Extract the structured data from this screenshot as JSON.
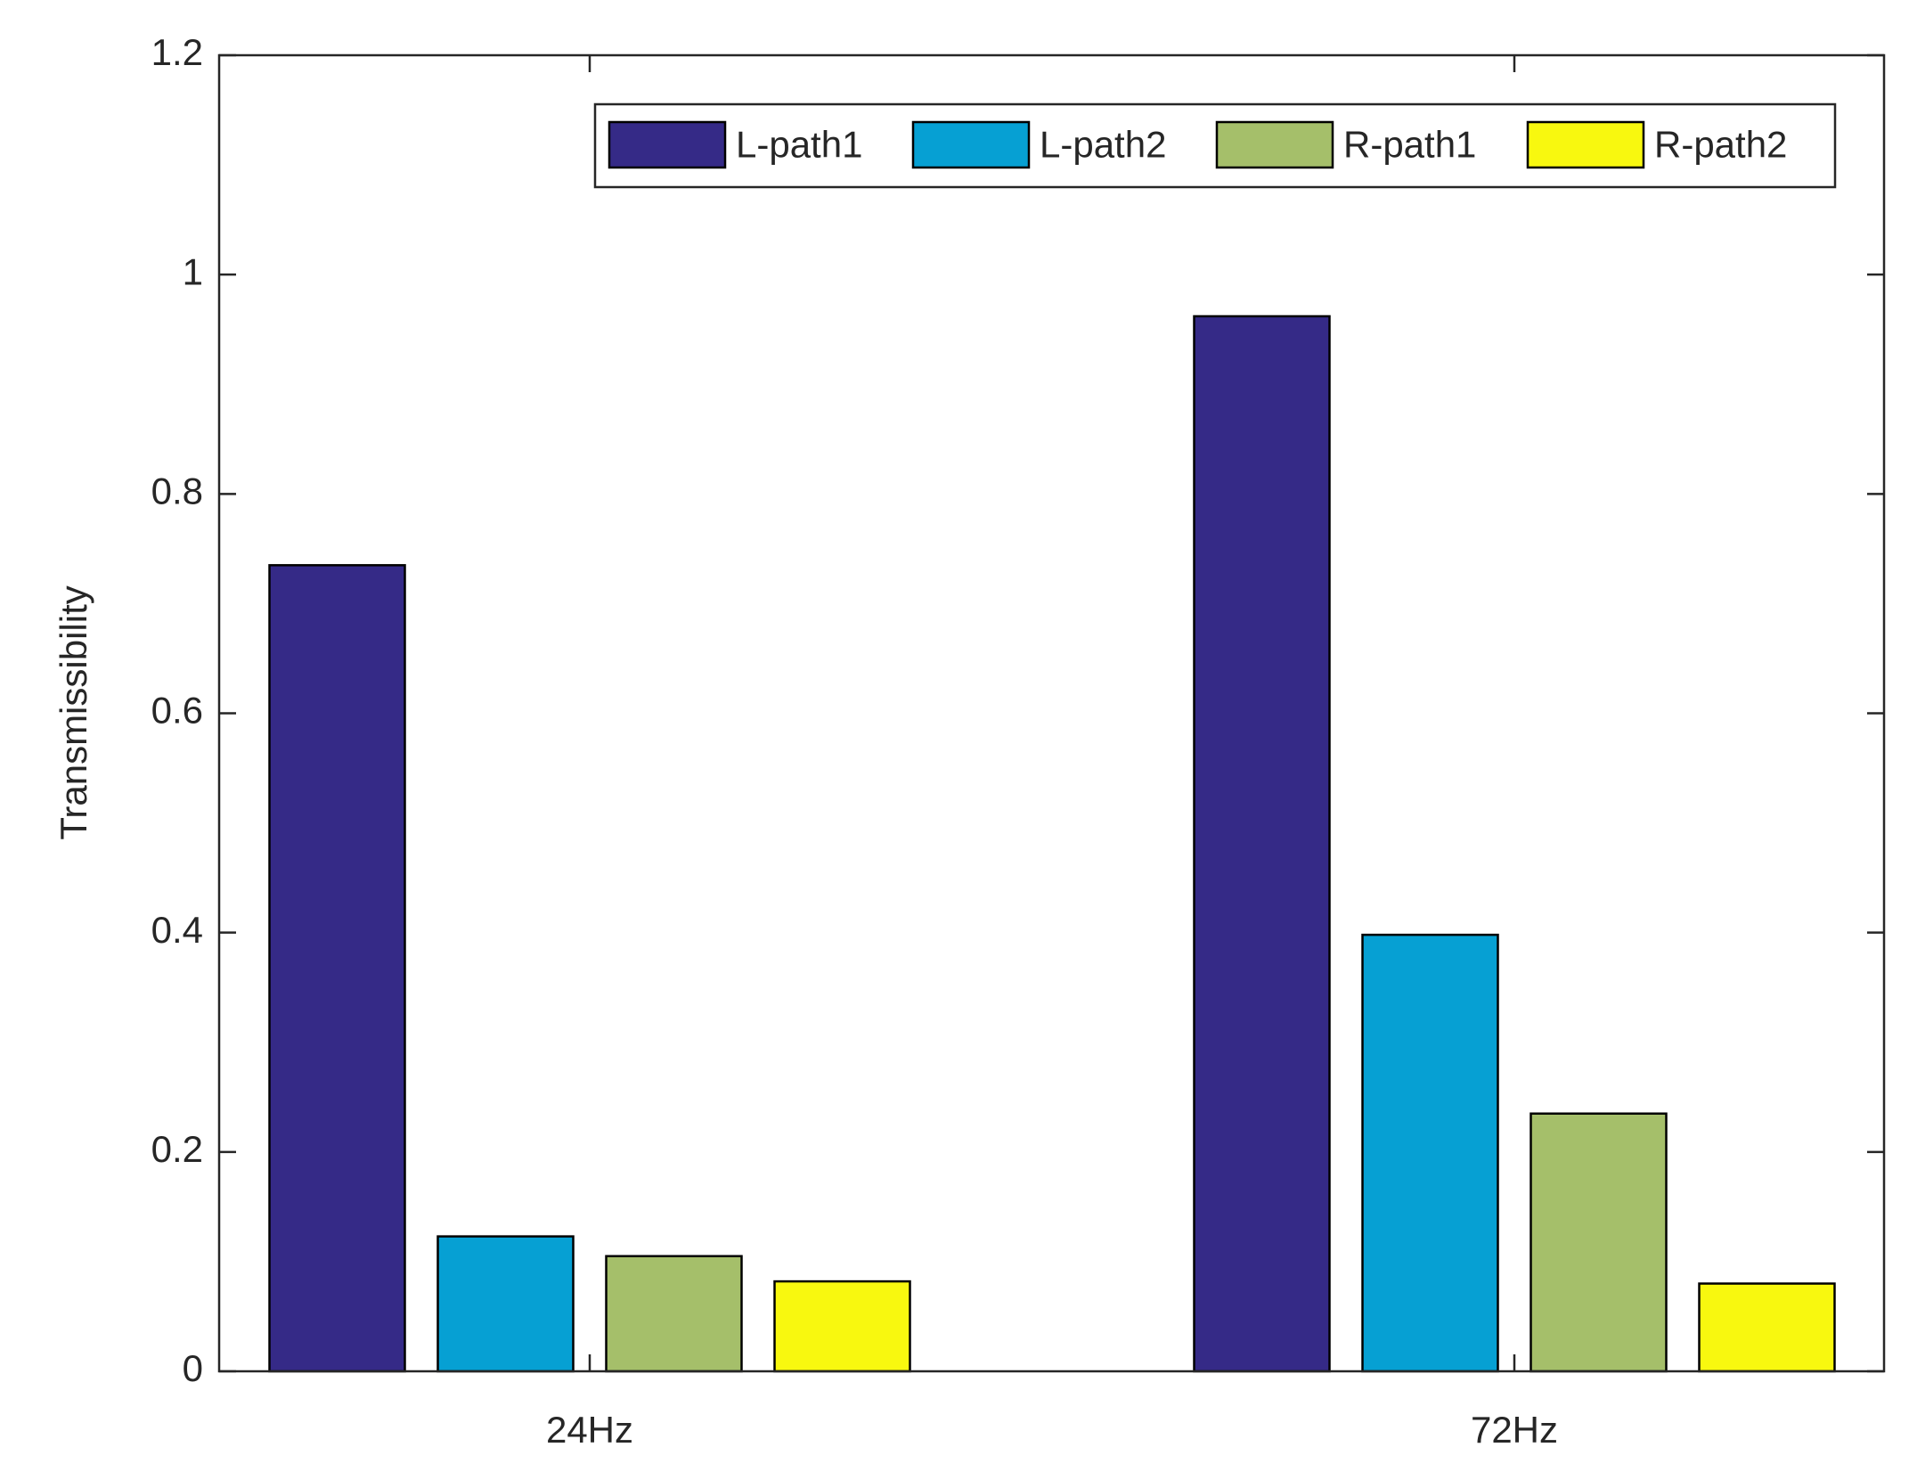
{
  "chart_data": {
    "type": "bar",
    "categories": [
      "24Hz",
      "72Hz"
    ],
    "ylabel": "Transmissibility",
    "series": [
      {
        "name": "L-path1",
        "color": "#352a87",
        "values": [
          0.735,
          0.962
        ]
      },
      {
        "name": "L-path2",
        "color": "#06a0d3",
        "values": [
          0.123,
          0.398
        ]
      },
      {
        "name": "R-path1",
        "color": "#a5bf6a",
        "values": [
          0.105,
          0.235
        ]
      },
      {
        "name": "R-path2",
        "color": "#f8f80f",
        "values": [
          0.082,
          0.08
        ]
      }
    ],
    "ylim": [
      0,
      1.2
    ],
    "yticks": [
      0,
      0.2,
      0.4,
      0.6,
      0.8,
      1,
      1.2
    ],
    "grid": false,
    "legend": "top-right"
  }
}
